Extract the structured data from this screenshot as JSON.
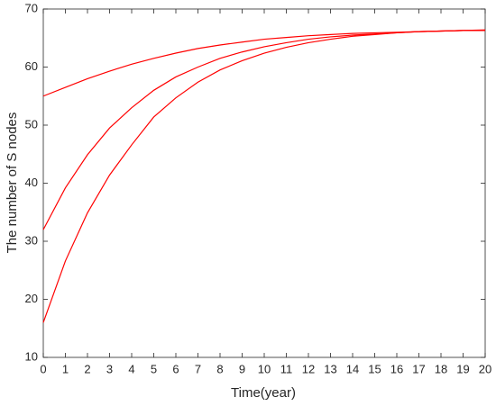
{
  "chart_data": {
    "type": "line",
    "xlabel": "Time(year)",
    "ylabel": "The number of S nodes",
    "x": [
      0,
      1,
      2,
      3,
      4,
      5,
      6,
      7,
      8,
      9,
      10,
      11,
      12,
      13,
      14,
      15,
      16,
      17,
      18,
      19,
      20
    ],
    "series": [
      {
        "color": "#ff0000",
        "values": [
          55,
          56.5,
          58,
          59.3,
          60.5,
          61.5,
          62.4,
          63.2,
          63.8,
          64.3,
          64.8,
          65.1,
          65.4,
          65.6,
          65.8,
          65.9,
          66.0,
          66.1,
          66.2,
          66.3,
          66.3
        ]
      },
      {
        "color": "#ff0000",
        "values": [
          32,
          39.2,
          44.9,
          49.5,
          53.0,
          56.0,
          58.3,
          60.0,
          61.5,
          62.6,
          63.5,
          64.2,
          64.8,
          65.2,
          65.5,
          65.7,
          65.9,
          66.1,
          66.2,
          66.3,
          66.3
        ]
      },
      {
        "color": "#ff0000",
        "values": [
          16,
          26.6,
          34.9,
          41.4,
          46.6,
          51.4,
          54.7,
          57.4,
          59.5,
          61.1,
          62.4,
          63.4,
          64.2,
          64.8,
          65.3,
          65.6,
          65.9,
          66.1,
          66.2,
          66.3,
          66.4
        ]
      }
    ],
    "xlim": [
      0,
      20
    ],
    "xticks": [
      0,
      1,
      2,
      3,
      4,
      5,
      6,
      7,
      8,
      9,
      10,
      11,
      12,
      13,
      14,
      15,
      16,
      17,
      18,
      19,
      20
    ],
    "ylim": [
      10,
      70
    ],
    "yticks": [
      10,
      20,
      30,
      40,
      50,
      60,
      70
    ],
    "grid": false
  }
}
